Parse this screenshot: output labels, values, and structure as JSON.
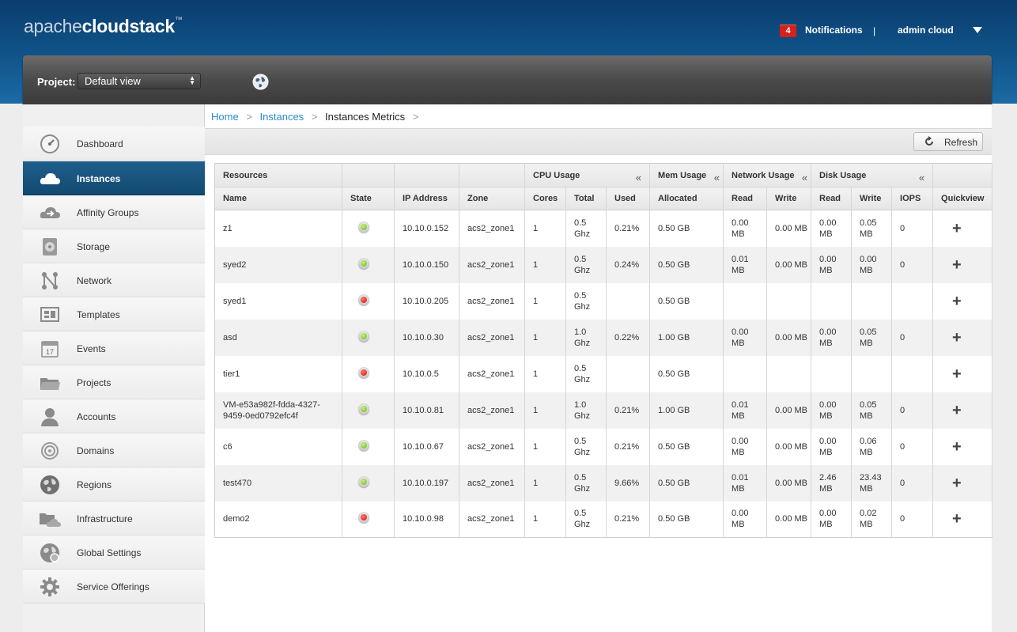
{
  "app": {
    "logo_part1": "apache",
    "logo_part2": "cloudstack",
    "logo_tm": "™"
  },
  "header": {
    "notification_count": "4",
    "notifications_label": "Notifications",
    "separator": "|",
    "user_label": "admin cloud"
  },
  "project_bar": {
    "label": "Project:",
    "selected": "Default view"
  },
  "sidebar": {
    "items": [
      {
        "label": "Dashboard",
        "icon": "dashboard-icon"
      },
      {
        "label": "Instances",
        "icon": "cloud-icon",
        "active": true
      },
      {
        "label": "Affinity Groups",
        "icon": "affinity-groups-icon"
      },
      {
        "label": "Storage",
        "icon": "storage-icon"
      },
      {
        "label": "Network",
        "icon": "network-icon"
      },
      {
        "label": "Templates",
        "icon": "templates-icon"
      },
      {
        "label": "Events",
        "icon": "calendar-icon"
      },
      {
        "label": "Projects",
        "icon": "folder-icon"
      },
      {
        "label": "Accounts",
        "icon": "user-icon"
      },
      {
        "label": "Domains",
        "icon": "domains-icon"
      },
      {
        "label": "Regions",
        "icon": "globe-icon"
      },
      {
        "label": "Infrastructure",
        "icon": "infrastructure-icon"
      },
      {
        "label": "Global Settings",
        "icon": "global-settings-icon"
      },
      {
        "label": "Service Offerings",
        "icon": "gear-icon"
      }
    ],
    "events_day": "17"
  },
  "breadcrumb": {
    "home": "Home",
    "instances": "Instances",
    "current": "Instances Metrics",
    "sep": ">"
  },
  "toolbar": {
    "refresh_label": "Refresh"
  },
  "table": {
    "groups": {
      "resources": "Resources",
      "cpu": "CPU Usage",
      "mem": "Mem Usage",
      "network": "Network Usage",
      "disk": "Disk Usage",
      "collapse": "«"
    },
    "columns": {
      "name": "Name",
      "state": "State",
      "ip": "IP Address",
      "zone": "Zone",
      "cores": "Cores",
      "total": "Total",
      "used": "Used",
      "allocated": "Allocated",
      "net_read": "Read",
      "net_write": "Write",
      "disk_read": "Read",
      "disk_write": "Write",
      "iops": "IOPS",
      "quickview": "Quickview"
    },
    "rows": [
      {
        "name": "z1",
        "state": "running",
        "ip": "10.10.0.152",
        "zone": "acs2_zone1",
        "cores": "1",
        "total": "0.5 Ghz",
        "used": "0.21%",
        "allocated": "0.50 GB",
        "net_read": "0.00 MB",
        "net_write": "0.00 MB",
        "disk_read": "0.00 MB",
        "disk_write": "0.05 MB",
        "iops": "0"
      },
      {
        "name": "syed2",
        "state": "running",
        "ip": "10.10.0.150",
        "zone": "acs2_zone1",
        "cores": "1",
        "total": "0.5 Ghz",
        "used": "0.24%",
        "allocated": "0.50 GB",
        "net_read": "0.01 MB",
        "net_write": "0.00 MB",
        "disk_read": "0.00 MB",
        "disk_write": "0.00 MB",
        "iops": "0"
      },
      {
        "name": "syed1",
        "state": "stopped",
        "ip": "10.10.0.205",
        "zone": "acs2_zone1",
        "cores": "1",
        "total": "0.5 Ghz",
        "used": "",
        "allocated": "0.50 GB",
        "net_read": "",
        "net_write": "",
        "disk_read": "",
        "disk_write": "",
        "iops": ""
      },
      {
        "name": "asd",
        "state": "running",
        "ip": "10.10.0.30",
        "zone": "acs2_zone1",
        "cores": "1",
        "total": "1.0 Ghz",
        "used": "0.22%",
        "allocated": "1.00 GB",
        "net_read": "0.00 MB",
        "net_write": "0.00 MB",
        "disk_read": "0.00 MB",
        "disk_write": "0.05 MB",
        "iops": "0"
      },
      {
        "name": "tier1",
        "state": "stopped",
        "ip": "10.10.0.5",
        "zone": "acs2_zone1",
        "cores": "1",
        "total": "0.5 Ghz",
        "used": "",
        "allocated": "0.50 GB",
        "net_read": "",
        "net_write": "",
        "disk_read": "",
        "disk_write": "",
        "iops": ""
      },
      {
        "name": "VM-e53a982f-fdda-4327-9459-0ed0792efc4f",
        "state": "running",
        "ip": "10.10.0.81",
        "zone": "acs2_zone1",
        "cores": "1",
        "total": "1.0 Ghz",
        "used": "0.21%",
        "allocated": "1.00 GB",
        "net_read": "0.01 MB",
        "net_write": "0.00 MB",
        "disk_read": "0.00 MB",
        "disk_write": "0.05 MB",
        "iops": "0"
      },
      {
        "name": "c6",
        "state": "running",
        "ip": "10.10.0.67",
        "zone": "acs2_zone1",
        "cores": "1",
        "total": "0.5 Ghz",
        "used": "0.21%",
        "allocated": "0.50 GB",
        "net_read": "0.00 MB",
        "net_write": "0.00 MB",
        "disk_read": "0.00 MB",
        "disk_write": "0.06 MB",
        "iops": "0"
      },
      {
        "name": "test470",
        "state": "running",
        "ip": "10.10.0.197",
        "zone": "acs2_zone1",
        "cores": "1",
        "total": "0.5 Ghz",
        "used": "9.66%",
        "allocated": "0.50 GB",
        "net_read": "0.01 MB",
        "net_write": "0.00 MB",
        "disk_read": "2.46 MB",
        "disk_write": "23.43 MB",
        "iops": "0"
      },
      {
        "name": "demo2",
        "state": "stopped",
        "ip": "10.10.0.98",
        "zone": "acs2_zone1",
        "cores": "1",
        "total": "0.5 Ghz",
        "used": "0.21%",
        "allocated": "0.50 GB",
        "net_read": "0.00 MB",
        "net_write": "0.00 MB",
        "disk_read": "0.00 MB",
        "disk_write": "0.02 MB",
        "iops": "0"
      }
    ],
    "quickview_symbol": "+"
  },
  "colors": {
    "header_blue": "#0f5085",
    "active_nav": "#1a5680",
    "link_blue": "#2a8bd0",
    "running_green": "#69b51e",
    "stopped_red": "#d10b0b",
    "badge_red": "#d6201b"
  }
}
